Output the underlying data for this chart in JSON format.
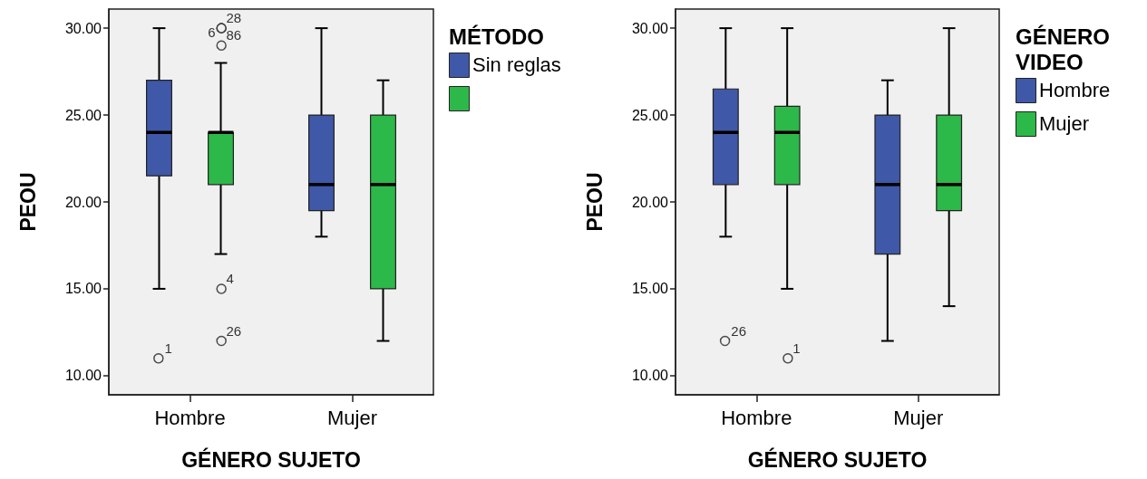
{
  "chart_data": [
    {
      "type": "box",
      "xlabel": "GÉNERO SUJETO",
      "ylabel": "PEOU",
      "legend_title": "MÉTODO",
      "legend": "right",
      "grid": false,
      "marker": "circle",
      "categories": [
        "Hombre",
        "Mujer"
      ],
      "ylim": [
        8.9,
        31.1
      ],
      "yticks": [
        {
          "value": 10,
          "label": "10.00"
        },
        {
          "value": 15,
          "label": "15.00"
        },
        {
          "value": 20,
          "label": "20.00"
        },
        {
          "value": 25,
          "label": "25.00"
        },
        {
          "value": 30,
          "label": "30.00"
        }
      ],
      "series": [
        {
          "name": "Sin reglas",
          "color": "#3f58a8",
          "boxes": [
            {
              "low": 15,
              "q1": 21.5,
              "median": 24,
              "q3": 27,
              "high": 30
            },
            {
              "low": 18,
              "q1": 19.5,
              "median": 21,
              "q3": 25,
              "high": 30
            }
          ]
        },
        {
          "type": "scatter",
          "color": "#222222",
          "x": [
            "Hombre"
          ],
          "values": [
            11
          ]
        },
        {
          "color": "#2db84a",
          "boxes": [
            {
              "low": 17,
              "q1": 21,
              "median": 24,
              "q3": 24,
              "high": 28
            },
            {
              "low": 12,
              "q1": 15,
              "median": 21,
              "q3": 25,
              "high": 27
            }
          ]
        },
        {
          "type": "scatter",
          "color": "#222222",
          "x": [
            "Hombre",
            "Hombre",
            "Hombre",
            "Hombre",
            "Hombre"
          ],
          "values": [
            30,
            30,
            29,
            15,
            12
          ]
        }
      ],
      "annotations": [
        "1",
        "6",
        "28",
        "86",
        "4",
        "26"
      ]
    },
    {
      "type": "box",
      "xlabel": "GÉNERO SUJETO",
      "ylabel": "PEOU",
      "legend_title": "GÉNERO VIDEO",
      "legend": "right",
      "grid": false,
      "marker": "circle",
      "categories": [
        "Hombre",
        "Mujer"
      ],
      "ylim": [
        8.9,
        31.1
      ],
      "yticks": [
        {
          "value": 10,
          "label": "10.00"
        },
        {
          "value": 15,
          "label": "15.00"
        },
        {
          "value": 20,
          "label": "20.00"
        },
        {
          "value": 25,
          "label": "25.00"
        },
        {
          "value": 30,
          "label": "30.00"
        }
      ],
      "series": [
        {
          "name": "Hombre",
          "color": "#3f58a8",
          "boxes": [
            {
              "low": 18,
              "q1": 21,
              "median": 24,
              "q3": 26.5,
              "high": 30
            },
            {
              "low": 12,
              "q1": 17,
              "median": 21,
              "q3": 25,
              "high": 27
            }
          ]
        },
        {
          "type": "scatter",
          "color": "#222222",
          "x": [
            "Hombre"
          ],
          "values": [
            12
          ]
        },
        {
          "name": "Mujer",
          "color": "#2db84a",
          "boxes": [
            {
              "low": 15,
              "q1": 21,
              "median": 24,
              "q3": 25.5,
              "high": 30
            },
            {
              "low": 14,
              "q1": 19.5,
              "median": 21,
              "q3": 25,
              "high": 30
            }
          ]
        },
        {
          "type": "scatter",
          "color": "#222222",
          "x": [
            "Hombre"
          ],
          "values": [
            11
          ]
        }
      ],
      "annotations": [
        "26",
        "1"
      ]
    }
  ]
}
